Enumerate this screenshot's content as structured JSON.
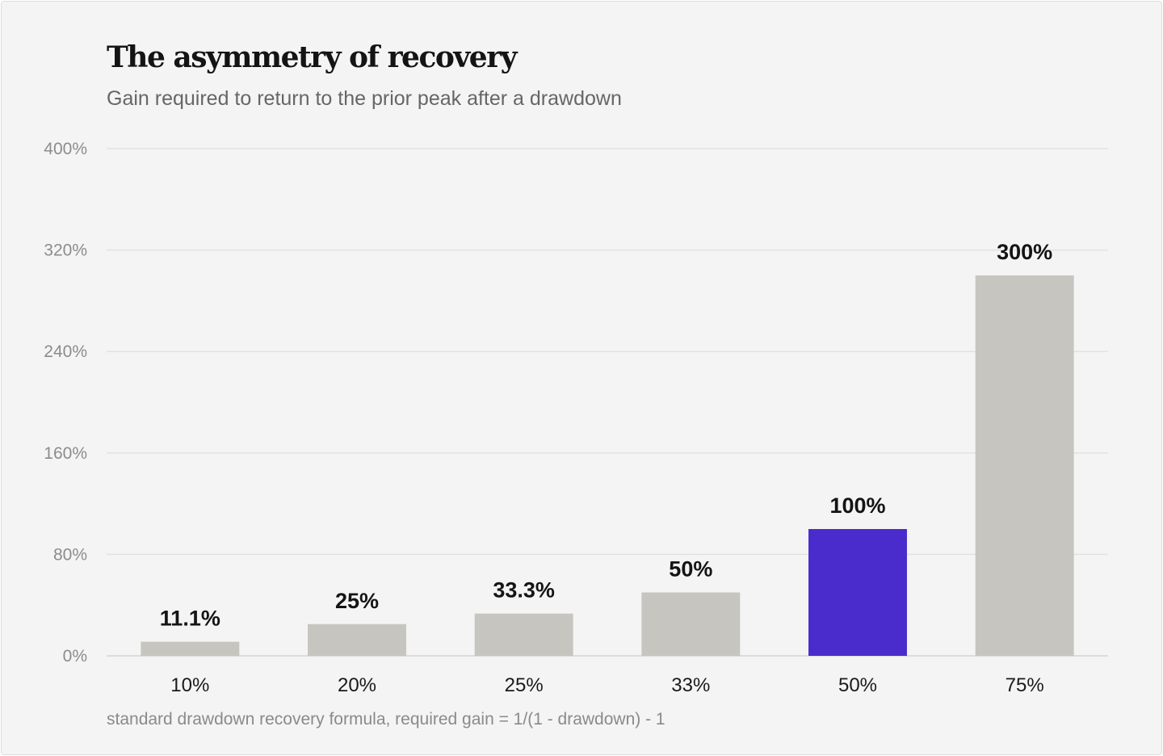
{
  "chart_data": {
    "type": "bar",
    "title": "The asymmetry of recovery",
    "subtitle": "Gain required to return to the prior peak after a drawdown",
    "footnote": "standard drawdown recovery formula, required gain = 1/(1 - drawdown) - 1",
    "categories": [
      "10%",
      "20%",
      "25%",
      "33%",
      "50%",
      "75%"
    ],
    "values": [
      11.1,
      25,
      33.3,
      50,
      100,
      300
    ],
    "data_labels": [
      "11.1%",
      "25%",
      "33.3%",
      "50%",
      "100%",
      "300%"
    ],
    "ylim": [
      0,
      400
    ],
    "yticks": [
      0,
      80,
      160,
      240,
      320,
      400
    ],
    "ytick_labels": [
      "0%",
      "80%",
      "160%",
      "240%",
      "320%",
      "400%"
    ],
    "xlabel": "",
    "ylabel": "",
    "grid": true,
    "highlight_index": 4,
    "colors": {
      "bar": "#c6c5c0",
      "highlight": "#4a2ccc",
      "grid": "#e2e2e2",
      "baseline": "#d4d4d4"
    }
  }
}
